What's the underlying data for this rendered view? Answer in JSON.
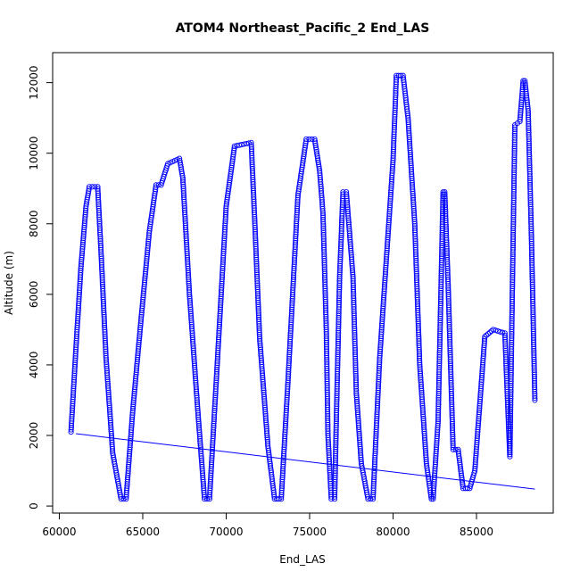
{
  "chart_data": {
    "type": "scatter",
    "title": "ATOM4 Northeast_Pacific_2 End_LAS",
    "xlabel": "End_LAS",
    "ylabel": "Altitude (m)",
    "xlim": [
      59600,
      89600
    ],
    "ylim": [
      -200,
      12850
    ],
    "xticks": [
      60000,
      65000,
      70000,
      75000,
      80000,
      85000
    ],
    "yticks": [
      0,
      2000,
      4000,
      6000,
      8000,
      10000,
      12000
    ],
    "grid": false,
    "legend": "none",
    "colors": {
      "points": "#0000ff",
      "line": "#0000ff",
      "axes": "#000000"
    },
    "marker": "open-circle",
    "trend_line": {
      "x": [
        61000,
        88500
      ],
      "y": [
        2050,
        480
      ]
    },
    "series": [
      {
        "x": [
          60700,
          61000,
          61300,
          61600,
          61800,
          62300,
          62500,
          62800,
          63200,
          63700,
          64000,
          64400,
          64900,
          65400,
          65800,
          66100,
          66500,
          67200,
          67400,
          67800,
          68300,
          68700,
          69000,
          69400,
          70000,
          70500,
          71500,
          71700,
          72000,
          72500,
          72900,
          73300,
          73700,
          74300,
          74800,
          75300,
          75600,
          75800,
          76000,
          76100,
          76300,
          76500,
          76600,
          76800,
          77000,
          77200,
          77600,
          77800,
          78100,
          78500,
          78800,
          79200,
          80000,
          80200,
          80600,
          80900,
          81300,
          81600,
          82000,
          82300,
          82400,
          82700,
          83000,
          83100,
          83300,
          83600,
          83900,
          84200,
          84600,
          84900,
          85500,
          86000,
          86700,
          87000,
          87300,
          87600,
          87800,
          87900,
          88100,
          88300,
          88500
        ],
        "y": [
          2100,
          4500,
          6800,
          8500,
          9050,
          9050,
          7200,
          4200,
          1500,
          200,
          200,
          2700,
          5300,
          7800,
          9100,
          9100,
          9700,
          9850,
          9300,
          6000,
          2700,
          200,
          200,
          3500,
          8500,
          10200,
          10300,
          8200,
          4800,
          1700,
          200,
          200,
          3500,
          8800,
          10400,
          10400,
          9500,
          8300,
          5000,
          2000,
          200,
          200,
          2400,
          6500,
          8900,
          8900,
          6500,
          3200,
          1200,
          200,
          200,
          4200,
          9800,
          12200,
          12200,
          11000,
          8000,
          4000,
          1200,
          200,
          200,
          2400,
          8900,
          8900,
          6300,
          1600,
          1600,
          500,
          500,
          1000,
          4800,
          5000,
          4900,
          1400,
          10800,
          10900,
          12050,
          12050,
          11200,
          7500,
          3000
        ]
      }
    ]
  }
}
